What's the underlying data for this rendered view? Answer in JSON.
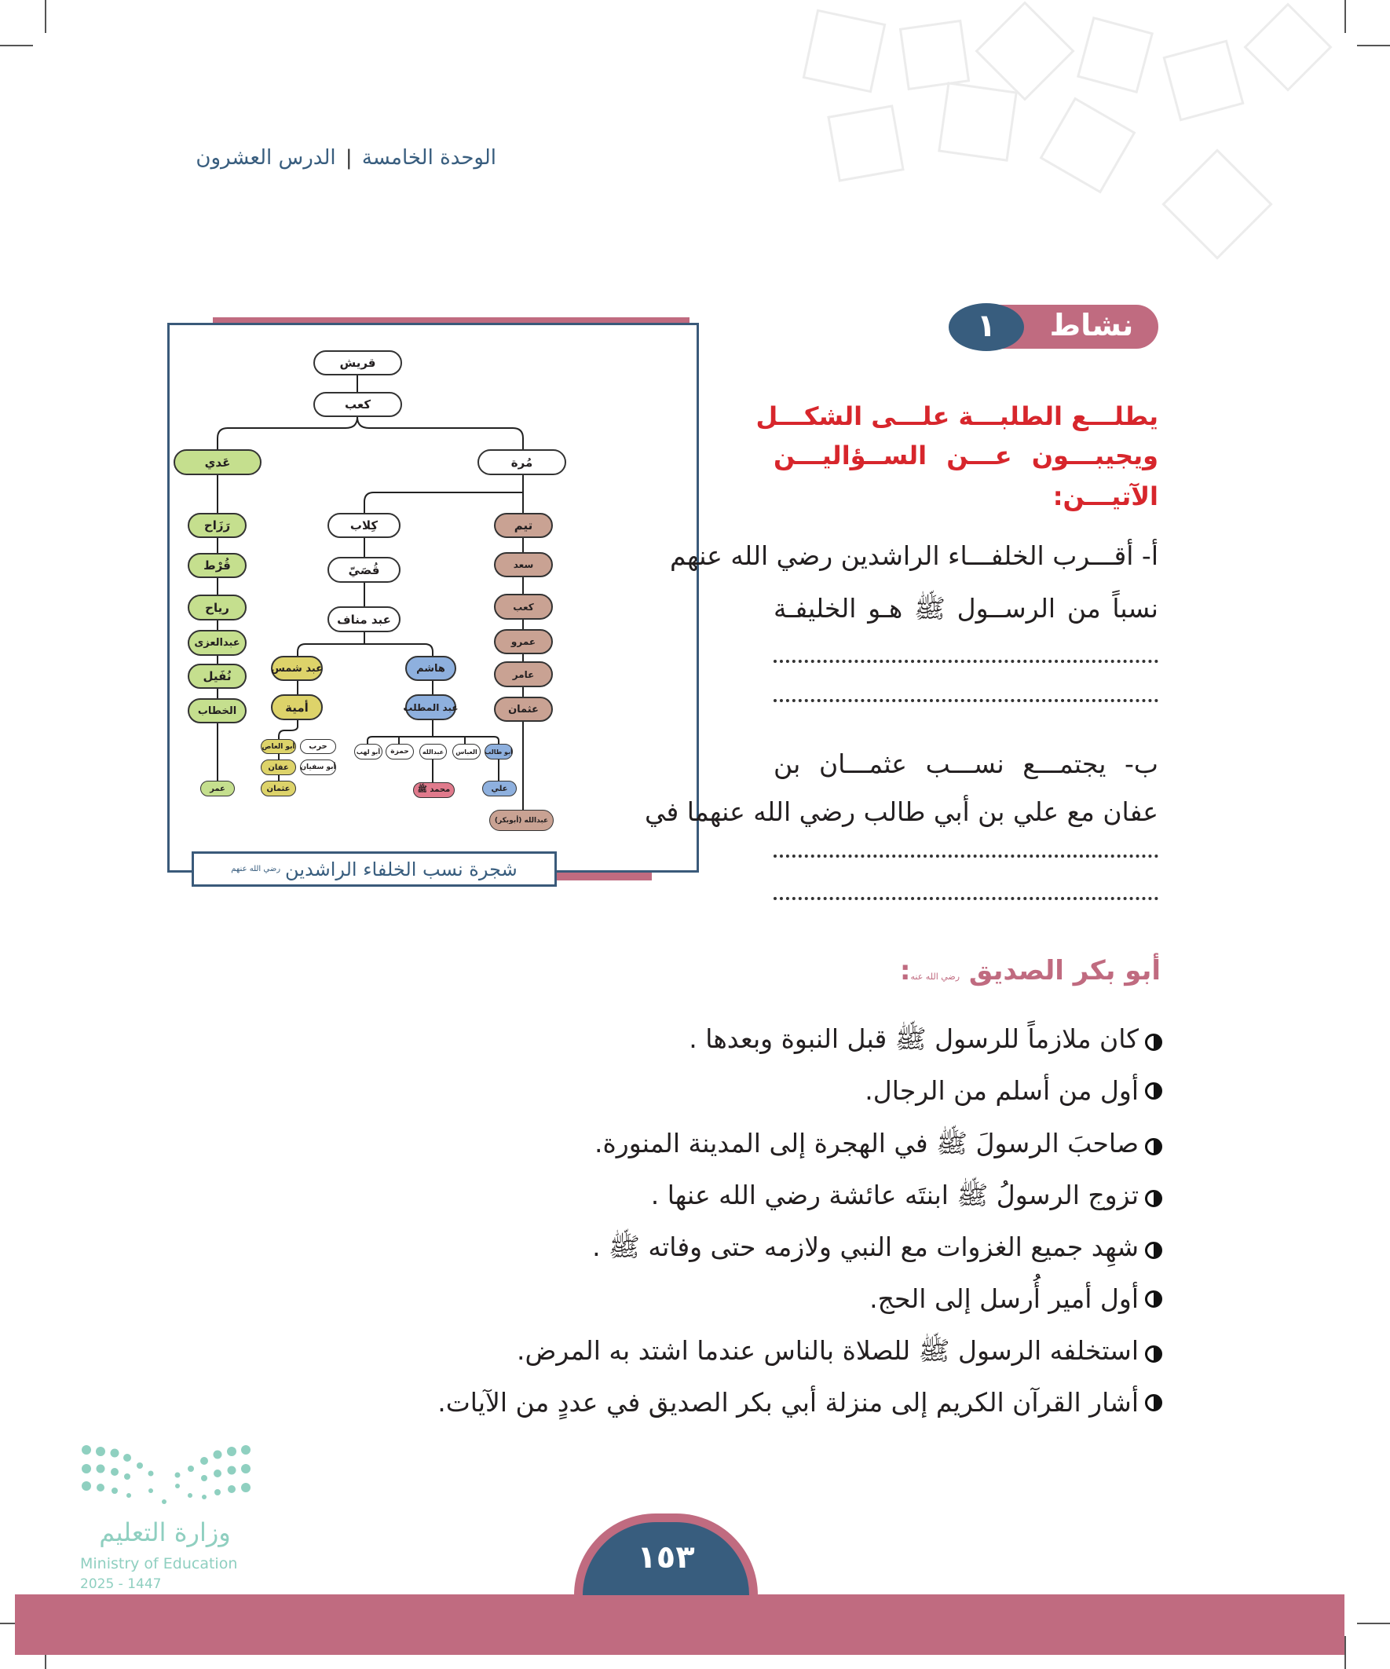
{
  "header": {
    "unit": "الوحدة الخامسة",
    "separator": "|",
    "lesson": "الدرس العشرون"
  },
  "activity": {
    "badge_label": "نشاط",
    "badge_number": "١",
    "instruction_lines": [
      "يطلـــع الطلبـــة علـــى الشكـــل",
      "ويجيبـــون عـــن الســؤاليـــن",
      "الآتيـــن:"
    ],
    "question_a": {
      "lines": [
        "أ- أقـــرب الخلفـــاء الراشدين رضي الله عنهم",
        "نسباً من الرســول ﷺ هـو الخليفـة"
      ]
    },
    "question_b": {
      "lines": [
        "ب- يجتمـــع نســـب عثمـــان بن",
        "عفان مع علي بن أبي طالب رضي الله عنهما في"
      ]
    }
  },
  "tree": {
    "caption": "شجرة نسب الخلفاء الراشدين",
    "caption_honorific": "رضي الله عنهم",
    "colors": {
      "green": "#c5df8e",
      "brown": "#c9a293",
      "yellow": "#ddd36a",
      "blue": "#8eb0de",
      "pink": "#e07a8c",
      "frame": "#3a5a7a",
      "accent": "#c06b80"
    },
    "nodes": {
      "quraysh": "قريش",
      "kaab": "كعب",
      "adi": "عَدي",
      "murra": "مُرة",
      "rizah": "رَزَاح",
      "qurt": "قُرْط",
      "riyah": "رياح",
      "abdul_uzza": "عبدالعزى",
      "nufayl": "نُفَيل",
      "khattab": "الخطاب",
      "umar": "عمر",
      "kilab": "كِلاب",
      "qusay": "قُصَيّ",
      "abd_manaf": "عبد مناف",
      "abd_shams": "عبد شمس",
      "umayya": "أمية",
      "abul_as": "أبو العاص",
      "harb": "حرب",
      "affan": "عفان",
      "abu_sufyan": "أبو سفيان",
      "uthman_u": "عثمان",
      "hashim": "هاشم",
      "abdul_muttalib": "عبد المطلب",
      "abu_lahab": "أبو لهب",
      "hamza": "حمزة",
      "abdullah": "عبدالله",
      "abbas": "العباس",
      "abu_talib": "أبو طالب",
      "muhammad": "محمد ﷺ",
      "ali": "علي",
      "taym": "تيم",
      "saad": "سعد",
      "kaab2": "كعب",
      "amr": "عمرو",
      "amir": "عامر",
      "uthman_t": "عثمان",
      "abu_bakr": "عبدالله (أبوبكر)"
    }
  },
  "abu_bakr": {
    "heading": "أبو بكر الصديق",
    "heading_honorific": "رضي الله عنه",
    "heading_suffix": ":",
    "points": [
      "كان ملازماً للرسول ﷺ قبل النبوة وبعدها .",
      "أول من أسلم من الرجال.",
      "صاحبَ الرسولَ ﷺ في الهجرة إلى المدينة المنورة.",
      "تزوج الرسولُ ﷺ ابنتَه عائشة رضي الله عنها .",
      "شهِد جميع الغزوات مع النبي ولازمه حتى وفاته ﷺ .",
      "أول أمير أُرسل إلى الحج.",
      "استخلفه الرسول ﷺ للصلاة بالناس عندما اشتد به المرض.",
      "أشار القرآن الكريم إلى منزلة أبي بكر الصديق في عددٍ من الآيات."
    ]
  },
  "footer": {
    "page_number": "١٥٣",
    "ministry_ar": "وزارة التعليم",
    "ministry_en": "Ministry of Education",
    "year": "2025 - 1447",
    "band_color": "#c06b80",
    "page_badge_color": "#385d7e"
  }
}
